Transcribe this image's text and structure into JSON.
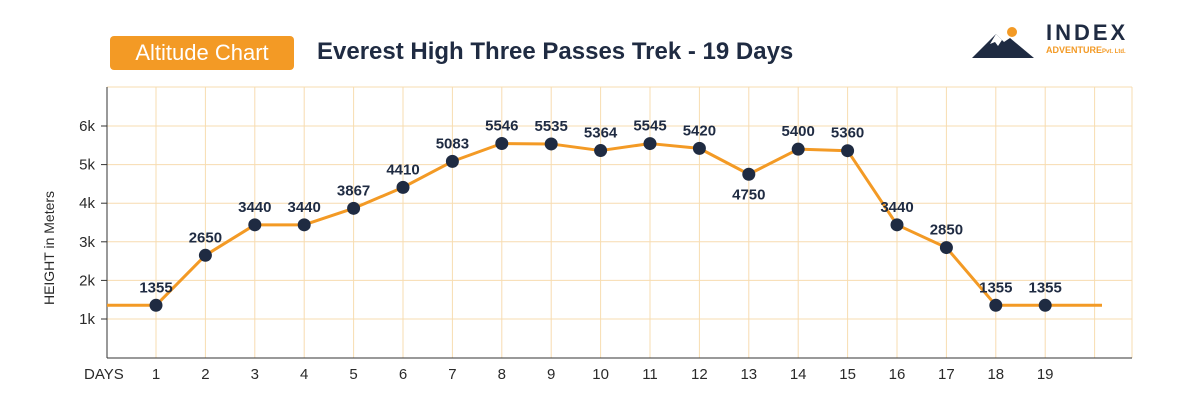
{
  "header": {
    "badge": "Altitude Chart",
    "title": "Everest High Three Passes Trek - 19 Days"
  },
  "brand": {
    "name": "INDEX",
    "sub": "ADVENTURE",
    "sub_suffix": "Pvt. Ltd.",
    "logo_icon": "mountain-sun-logo"
  },
  "colors": {
    "accent": "#f39a25",
    "marker": "#1f2b42",
    "grid": "#f7dcb0",
    "text_dark": "#1f2b42"
  },
  "chart_data": {
    "type": "line",
    "title": "Everest High Three Passes Trek - 19 Days",
    "xlabel": "DAYS",
    "ylabel": "HEIGHT in Meters",
    "x": [
      1,
      2,
      3,
      4,
      5,
      6,
      7,
      8,
      9,
      10,
      11,
      12,
      13,
      14,
      15,
      16,
      17,
      18,
      19
    ],
    "values": [
      1355,
      2650,
      3440,
      3440,
      3867,
      4410,
      5083,
      5546,
      5535,
      5364,
      5545,
      5420,
      4750,
      5400,
      5360,
      3440,
      2850,
      1355,
      1355
    ],
    "data_labels": [
      "1355",
      "2650",
      "3440",
      "3440",
      "3867",
      "4410",
      "5083",
      "5546",
      "5535",
      "5364",
      "5545",
      "5420",
      "4750",
      "5400",
      "5360",
      "3440",
      "2850",
      "1355",
      "1355"
    ],
    "y_ticks": [
      1000,
      2000,
      3000,
      4000,
      5000,
      6000
    ],
    "y_tick_labels": [
      "1k",
      "2k",
      "3k",
      "4k",
      "5k",
      "6k"
    ],
    "ylim": [
      0,
      7000
    ],
    "xlim": [
      0,
      20
    ],
    "grid": true,
    "line_extends_to_edges": true
  }
}
